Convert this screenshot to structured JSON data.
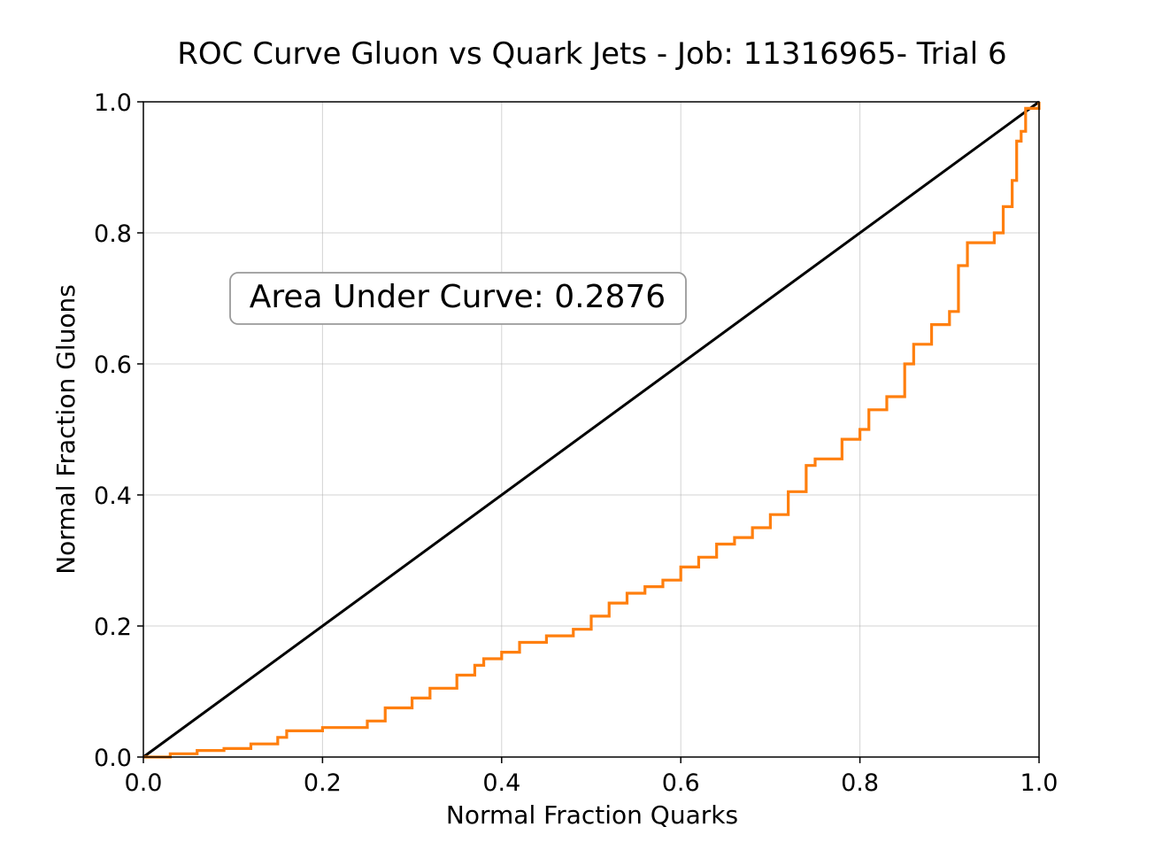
{
  "chart_data": {
    "type": "line",
    "title": "ROC Curve Gluon vs Quark Jets - Job: 11316965- Trial 6",
    "xlabel": "Normal Fraction Quarks",
    "ylabel": "Normal Fraction Gluons",
    "xlim": [
      0.0,
      1.0
    ],
    "ylim": [
      0.0,
      1.0
    ],
    "xticks": [
      "0.0",
      "0.2",
      "0.4",
      "0.6",
      "0.8",
      "1.0"
    ],
    "yticks": [
      "0.0",
      "0.2",
      "0.4",
      "0.6",
      "0.8",
      "1.0"
    ],
    "grid": true,
    "annotation": "Area Under Curve: 0.2876",
    "series": [
      {
        "color": "#000000",
        "x": [
          0.0,
          1.0
        ],
        "y": [
          0.0,
          1.0
        ]
      },
      {
        "color": "#ff7f0e",
        "step": true,
        "x": [
          0.0,
          0.03,
          0.06,
          0.09,
          0.12,
          0.15,
          0.16,
          0.2,
          0.25,
          0.27,
          0.3,
          0.32,
          0.35,
          0.37,
          0.38,
          0.4,
          0.42,
          0.45,
          0.48,
          0.5,
          0.52,
          0.54,
          0.56,
          0.58,
          0.6,
          0.62,
          0.64,
          0.66,
          0.68,
          0.7,
          0.72,
          0.74,
          0.75,
          0.78,
          0.8,
          0.81,
          0.83,
          0.85,
          0.86,
          0.88,
          0.9,
          0.91,
          0.92,
          0.95,
          0.96,
          0.97,
          0.975,
          0.98,
          0.985,
          1.0
        ],
        "y": [
          0.0,
          0.005,
          0.01,
          0.013,
          0.02,
          0.03,
          0.04,
          0.045,
          0.055,
          0.075,
          0.09,
          0.105,
          0.125,
          0.14,
          0.15,
          0.16,
          0.175,
          0.185,
          0.195,
          0.215,
          0.235,
          0.25,
          0.26,
          0.27,
          0.29,
          0.305,
          0.325,
          0.335,
          0.35,
          0.37,
          0.405,
          0.445,
          0.455,
          0.485,
          0.5,
          0.53,
          0.55,
          0.6,
          0.63,
          0.66,
          0.68,
          0.75,
          0.785,
          0.8,
          0.84,
          0.88,
          0.94,
          0.955,
          0.99,
          1.0
        ]
      }
    ]
  }
}
